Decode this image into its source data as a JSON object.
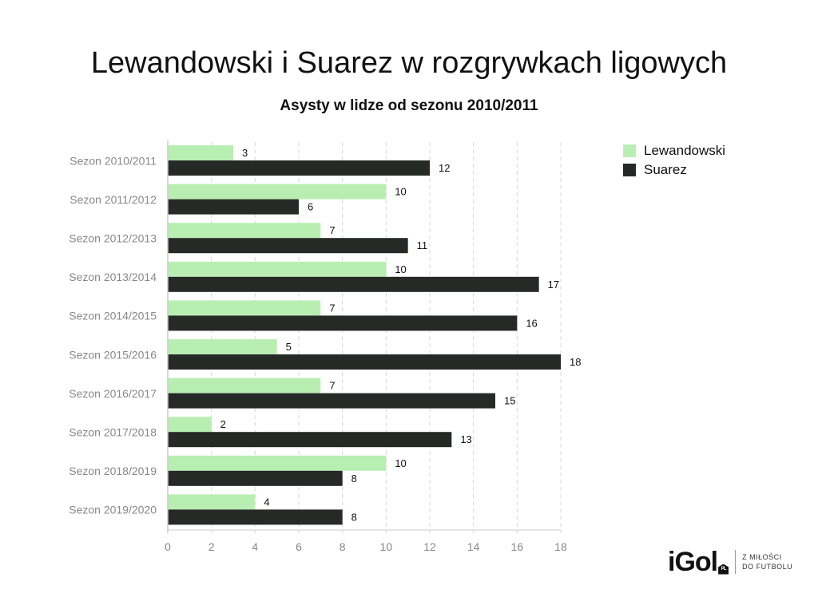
{
  "header": {
    "title": "Lewandowski i Suarez w rozgrywkach ligowych",
    "subtitle": "Asysty w lidze od sezonu 2010/2011"
  },
  "colors": {
    "lewandowski": "#b9eeb3",
    "suarez": "#252a26",
    "axis_text": "#888888",
    "grid": "#d8d8d8"
  },
  "chart_data": {
    "type": "bar",
    "orientation": "horizontal",
    "title": "Lewandowski i Suarez w rozgrywkach ligowych",
    "subtitle": "Asysty w lidze od sezonu 2010/2011",
    "categories": [
      "Sezon 2010/2011",
      "Sezon 2011/2012",
      "Sezon 2012/2013",
      "Sezon 2013/2014",
      "Sezon 2014/2015",
      "Sezon 2015/2016",
      "Sezon 2016/2017",
      "Sezon 2017/2018",
      "Sezon 2018/2019",
      "Sezon 2019/2020"
    ],
    "series": [
      {
        "name": "Lewandowski",
        "values": [
          3,
          10,
          7,
          10,
          7,
          5,
          7,
          2,
          10,
          4
        ]
      },
      {
        "name": "Suarez",
        "values": [
          12,
          6,
          11,
          17,
          16,
          18,
          15,
          13,
          8,
          8
        ]
      }
    ],
    "xlim": [
      0,
      18
    ],
    "xticks": [
      0,
      2,
      4,
      6,
      8,
      10,
      12,
      14,
      16,
      18
    ],
    "xlabel": "",
    "ylabel": "",
    "grid": "vertical dashed",
    "legend": "top-right",
    "data_labels": true
  },
  "legend": {
    "items": [
      {
        "label": "Lewandowski"
      },
      {
        "label": "Suarez"
      }
    ]
  },
  "logo": {
    "word": "iGol",
    "badge": "PL",
    "tagline_line1": "Z MIŁOŚCI",
    "tagline_line2": "DO FUTBOLU"
  }
}
